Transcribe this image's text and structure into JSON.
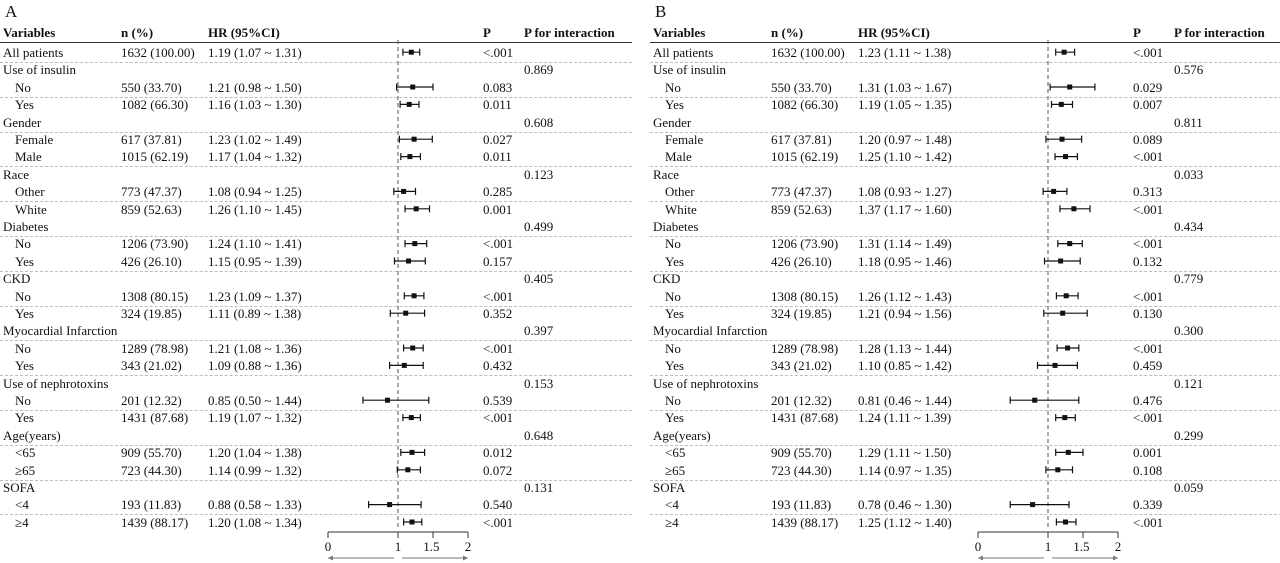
{
  "columns": {
    "variables": "Variables",
    "n": "n (%)",
    "hr": "HR (95%CI)",
    "p": "P",
    "p_int": "P for interaction"
  },
  "panels": [
    {
      "label": "A",
      "axis": {
        "ticks": [
          "0",
          "1",
          "1.5",
          "2"
        ]
      },
      "rows": [
        {
          "label": "All patients",
          "indent": false,
          "n": "1632 (100.00)",
          "hr": "1.19 (1.07 ~ 1.31)",
          "p": "<.001",
          "pint": ""
        },
        {
          "label": "Use of insulin",
          "indent": false,
          "n": "",
          "hr": "",
          "p": "",
          "pint": "0.869"
        },
        {
          "label": "No",
          "indent": true,
          "n": "550 (33.70)",
          "hr": "1.21 (0.98 ~ 1.50)",
          "p": "0.083",
          "pint": ""
        },
        {
          "label": "Yes",
          "indent": true,
          "n": "1082 (66.30)",
          "hr": "1.16 (1.03 ~ 1.30)",
          "p": "0.011",
          "pint": ""
        },
        {
          "label": "Gender",
          "indent": false,
          "n": "",
          "hr": "",
          "p": "",
          "pint": "0.608"
        },
        {
          "label": "Female",
          "indent": true,
          "n": "617 (37.81)",
          "hr": "1.23 (1.02 ~ 1.49)",
          "p": "0.027",
          "pint": ""
        },
        {
          "label": "Male",
          "indent": true,
          "n": "1015 (62.19)",
          "hr": "1.17 (1.04 ~ 1.32)",
          "p": "0.011",
          "pint": ""
        },
        {
          "label": "Race",
          "indent": false,
          "n": "",
          "hr": "",
          "p": "",
          "pint": "0.123"
        },
        {
          "label": "Other",
          "indent": true,
          "n": "773 (47.37)",
          "hr": "1.08 (0.94 ~ 1.25)",
          "p": "0.285",
          "pint": ""
        },
        {
          "label": "White",
          "indent": true,
          "n": "859 (52.63)",
          "hr": "1.26 (1.10 ~ 1.45)",
          "p": "0.001",
          "pint": ""
        },
        {
          "label": "Diabetes",
          "indent": false,
          "n": "",
          "hr": "",
          "p": "",
          "pint": "0.499"
        },
        {
          "label": "No",
          "indent": true,
          "n": "1206 (73.90)",
          "hr": "1.24 (1.10 ~ 1.41)",
          "p": "<.001",
          "pint": ""
        },
        {
          "label": "Yes",
          "indent": true,
          "n": "426 (26.10)",
          "hr": "1.15 (0.95 ~ 1.39)",
          "p": "0.157",
          "pint": ""
        },
        {
          "label": "CKD",
          "indent": false,
          "n": "",
          "hr": "",
          "p": "",
          "pint": "0.405"
        },
        {
          "label": "No",
          "indent": true,
          "n": "1308 (80.15)",
          "hr": "1.23 (1.09 ~ 1.37)",
          "p": "<.001",
          "pint": ""
        },
        {
          "label": "Yes",
          "indent": true,
          "n": "324 (19.85)",
          "hr": "1.11 (0.89 ~ 1.38)",
          "p": "0.352",
          "pint": ""
        },
        {
          "label": "Myocardial Infarction",
          "indent": false,
          "n": "",
          "hr": "",
          "p": "",
          "pint": "0.397"
        },
        {
          "label": "No",
          "indent": true,
          "n": "1289 (78.98)",
          "hr": "1.21 (1.08 ~ 1.36)",
          "p": "<.001",
          "pint": ""
        },
        {
          "label": "Yes",
          "indent": true,
          "n": "343 (21.02)",
          "hr": "1.09 (0.88 ~ 1.36)",
          "p": "0.432",
          "pint": ""
        },
        {
          "label": "Use of nephrotoxins",
          "indent": false,
          "n": "",
          "hr": "",
          "p": "",
          "pint": "0.153"
        },
        {
          "label": "No",
          "indent": true,
          "n": "201 (12.32)",
          "hr": "0.85 (0.50 ~ 1.44)",
          "p": "0.539",
          "pint": ""
        },
        {
          "label": "Yes",
          "indent": true,
          "n": "1431 (87.68)",
          "hr": "1.19 (1.07 ~ 1.32)",
          "p": "<.001",
          "pint": ""
        },
        {
          "label": "Age(years)",
          "indent": false,
          "n": "",
          "hr": "",
          "p": "",
          "pint": "0.648"
        },
        {
          "label": "<65",
          "indent": true,
          "n": "909 (55.70)",
          "hr": "1.20 (1.04 ~ 1.38)",
          "p": "0.012",
          "pint": ""
        },
        {
          "label": "≥65",
          "indent": true,
          "n": "723 (44.30)",
          "hr": "1.14 (0.99 ~ 1.32)",
          "p": "0.072",
          "pint": ""
        },
        {
          "label": "SOFA",
          "indent": false,
          "n": "",
          "hr": "",
          "p": "",
          "pint": "0.131"
        },
        {
          "label": "<4",
          "indent": true,
          "n": "193 (11.83)",
          "hr": "0.88 (0.58 ~ 1.33)",
          "p": "0.540",
          "pint": ""
        },
        {
          "label": "≥4",
          "indent": true,
          "n": "1439 (88.17)",
          "hr": "1.20 (1.08 ~ 1.34)",
          "p": "<.001",
          "pint": ""
        }
      ]
    },
    {
      "label": "B",
      "axis": {
        "ticks": [
          "0",
          "1",
          "1.5",
          "2"
        ]
      },
      "rows": [
        {
          "label": "All patients",
          "indent": false,
          "n": "1632 (100.00)",
          "hr": "1.23 (1.11 ~ 1.38)",
          "p": "<.001",
          "pint": ""
        },
        {
          "label": "Use of insulin",
          "indent": false,
          "n": "",
          "hr": "",
          "p": "",
          "pint": "0.576"
        },
        {
          "label": "No",
          "indent": true,
          "n": "550 (33.70)",
          "hr": "1.31 (1.03 ~ 1.67)",
          "p": "0.029",
          "pint": ""
        },
        {
          "label": "Yes",
          "indent": true,
          "n": "1082 (66.30)",
          "hr": "1.19 (1.05 ~ 1.35)",
          "p": "0.007",
          "pint": ""
        },
        {
          "label": "Gender",
          "indent": false,
          "n": "",
          "hr": "",
          "p": "",
          "pint": "0.811"
        },
        {
          "label": "Female",
          "indent": true,
          "n": "617 (37.81)",
          "hr": "1.20 (0.97 ~ 1.48)",
          "p": "0.089",
          "pint": ""
        },
        {
          "label": "Male",
          "indent": true,
          "n": "1015 (62.19)",
          "hr": "1.25 (1.10 ~ 1.42)",
          "p": "<.001",
          "pint": ""
        },
        {
          "label": "Race",
          "indent": false,
          "n": "",
          "hr": "",
          "p": "",
          "pint": "0.033"
        },
        {
          "label": "Other",
          "indent": true,
          "n": "773 (47.37)",
          "hr": "1.08 (0.93 ~ 1.27)",
          "p": "0.313",
          "pint": ""
        },
        {
          "label": "White",
          "indent": true,
          "n": "859 (52.63)",
          "hr": "1.37 (1.17 ~ 1.60)",
          "p": "<.001",
          "pint": ""
        },
        {
          "label": "Diabetes",
          "indent": false,
          "n": "",
          "hr": "",
          "p": "",
          "pint": "0.434"
        },
        {
          "label": "No",
          "indent": true,
          "n": "1206 (73.90)",
          "hr": "1.31 (1.14 ~ 1.49)",
          "p": "<.001",
          "pint": ""
        },
        {
          "label": "Yes",
          "indent": true,
          "n": "426 (26.10)",
          "hr": "1.18 (0.95 ~ 1.46)",
          "p": "0.132",
          "pint": ""
        },
        {
          "label": "CKD",
          "indent": false,
          "n": "",
          "hr": "",
          "p": "",
          "pint": "0.779"
        },
        {
          "label": "No",
          "indent": true,
          "n": "1308 (80.15)",
          "hr": "1.26 (1.12 ~ 1.43)",
          "p": "<.001",
          "pint": ""
        },
        {
          "label": "Yes",
          "indent": true,
          "n": "324 (19.85)",
          "hr": "1.21 (0.94 ~ 1.56)",
          "p": "0.130",
          "pint": ""
        },
        {
          "label": "Myocardial Infarction",
          "indent": false,
          "n": "",
          "hr": "",
          "p": "",
          "pint": "0.300"
        },
        {
          "label": "No",
          "indent": true,
          "n": "1289 (78.98)",
          "hr": "1.28 (1.13 ~ 1.44)",
          "p": "<.001",
          "pint": ""
        },
        {
          "label": "Yes",
          "indent": true,
          "n": "343 (21.02)",
          "hr": "1.10 (0.85 ~ 1.42)",
          "p": "0.459",
          "pint": ""
        },
        {
          "label": "Use of nephrotoxins",
          "indent": false,
          "n": "",
          "hr": "",
          "p": "",
          "pint": "0.121"
        },
        {
          "label": "No",
          "indent": true,
          "n": "201 (12.32)",
          "hr": "0.81 (0.46 ~ 1.44)",
          "p": "0.476",
          "pint": ""
        },
        {
          "label": "Yes",
          "indent": true,
          "n": "1431 (87.68)",
          "hr": "1.24 (1.11 ~ 1.39)",
          "p": "<.001",
          "pint": ""
        },
        {
          "label": "Age(years)",
          "indent": false,
          "n": "",
          "hr": "",
          "p": "",
          "pint": "0.299"
        },
        {
          "label": "<65",
          "indent": true,
          "n": "909 (55.70)",
          "hr": "1.29 (1.11 ~ 1.50)",
          "p": "0.001",
          "pint": ""
        },
        {
          "label": "≥65",
          "indent": true,
          "n": "723 (44.30)",
          "hr": "1.14 (0.97 ~ 1.35)",
          "p": "0.108",
          "pint": ""
        },
        {
          "label": "SOFA",
          "indent": false,
          "n": "",
          "hr": "",
          "p": "",
          "pint": "0.059"
        },
        {
          "label": "<4",
          "indent": true,
          "n": "193 (11.83)",
          "hr": "0.78 (0.46 ~ 1.30)",
          "p": "0.339",
          "pint": ""
        },
        {
          "label": "≥4",
          "indent": true,
          "n": "1439 (88.17)",
          "hr": "1.25 (1.12 ~ 1.40)",
          "p": "<.001",
          "pint": ""
        }
      ]
    }
  ],
  "chart_data": [
    {
      "type": "forest",
      "panel": "A",
      "xlim": [
        0,
        2
      ],
      "reference_line": 1,
      "xticks": [
        0,
        1,
        1.5,
        2
      ],
      "points": [
        {
          "group": "All patients",
          "hr": 1.19,
          "lo": 1.07,
          "hi": 1.31
        },
        {
          "group": "Use of insulin: No",
          "hr": 1.21,
          "lo": 0.98,
          "hi": 1.5
        },
        {
          "group": "Use of insulin: Yes",
          "hr": 1.16,
          "lo": 1.03,
          "hi": 1.3
        },
        {
          "group": "Gender: Female",
          "hr": 1.23,
          "lo": 1.02,
          "hi": 1.49
        },
        {
          "group": "Gender: Male",
          "hr": 1.17,
          "lo": 1.04,
          "hi": 1.32
        },
        {
          "group": "Race: Other",
          "hr": 1.08,
          "lo": 0.94,
          "hi": 1.25
        },
        {
          "group": "Race: White",
          "hr": 1.26,
          "lo": 1.1,
          "hi": 1.45
        },
        {
          "group": "Diabetes: No",
          "hr": 1.24,
          "lo": 1.1,
          "hi": 1.41
        },
        {
          "group": "Diabetes: Yes",
          "hr": 1.15,
          "lo": 0.95,
          "hi": 1.39
        },
        {
          "group": "CKD: No",
          "hr": 1.23,
          "lo": 1.09,
          "hi": 1.37
        },
        {
          "group": "CKD: Yes",
          "hr": 1.11,
          "lo": 0.89,
          "hi": 1.38
        },
        {
          "group": "Myocardial Infarction: No",
          "hr": 1.21,
          "lo": 1.08,
          "hi": 1.36
        },
        {
          "group": "Myocardial Infarction: Yes",
          "hr": 1.09,
          "lo": 0.88,
          "hi": 1.36
        },
        {
          "group": "Use of nephrotoxins: No",
          "hr": 0.85,
          "lo": 0.5,
          "hi": 1.44
        },
        {
          "group": "Use of nephrotoxins: Yes",
          "hr": 1.19,
          "lo": 1.07,
          "hi": 1.32
        },
        {
          "group": "Age(years): <65",
          "hr": 1.2,
          "lo": 1.04,
          "hi": 1.38
        },
        {
          "group": "Age(years): ≥65",
          "hr": 1.14,
          "lo": 0.99,
          "hi": 1.32
        },
        {
          "group": "SOFA: <4",
          "hr": 0.88,
          "lo": 0.58,
          "hi": 1.33
        },
        {
          "group": "SOFA: ≥4",
          "hr": 1.2,
          "lo": 1.08,
          "hi": 1.34
        }
      ]
    },
    {
      "type": "forest",
      "panel": "B",
      "xlim": [
        0,
        2
      ],
      "reference_line": 1,
      "xticks": [
        0,
        1,
        1.5,
        2
      ],
      "points": [
        {
          "group": "All patients",
          "hr": 1.23,
          "lo": 1.11,
          "hi": 1.38
        },
        {
          "group": "Use of insulin: No",
          "hr": 1.31,
          "lo": 1.03,
          "hi": 1.67
        },
        {
          "group": "Use of insulin: Yes",
          "hr": 1.19,
          "lo": 1.05,
          "hi": 1.35
        },
        {
          "group": "Gender: Female",
          "hr": 1.2,
          "lo": 0.97,
          "hi": 1.48
        },
        {
          "group": "Gender: Male",
          "hr": 1.25,
          "lo": 1.1,
          "hi": 1.42
        },
        {
          "group": "Race: Other",
          "hr": 1.08,
          "lo": 0.93,
          "hi": 1.27
        },
        {
          "group": "Race: White",
          "hr": 1.37,
          "lo": 1.17,
          "hi": 1.6
        },
        {
          "group": "Diabetes: No",
          "hr": 1.31,
          "lo": 1.14,
          "hi": 1.49
        },
        {
          "group": "Diabetes: Yes",
          "hr": 1.18,
          "lo": 0.95,
          "hi": 1.46
        },
        {
          "group": "CKD: No",
          "hr": 1.26,
          "lo": 1.12,
          "hi": 1.43
        },
        {
          "group": "CKD: Yes",
          "hr": 1.21,
          "lo": 0.94,
          "hi": 1.56
        },
        {
          "group": "Myocardial Infarction: No",
          "hr": 1.28,
          "lo": 1.13,
          "hi": 1.44
        },
        {
          "group": "Myocardial Infarction: Yes",
          "hr": 1.1,
          "lo": 0.85,
          "hi": 1.42
        },
        {
          "group": "Use of nephrotoxins: No",
          "hr": 0.81,
          "lo": 0.46,
          "hi": 1.44
        },
        {
          "group": "Use of nephrotoxins: Yes",
          "hr": 1.24,
          "lo": 1.11,
          "hi": 1.39
        },
        {
          "group": "Age(years): <65",
          "hr": 1.29,
          "lo": 1.11,
          "hi": 1.5
        },
        {
          "group": "Age(years): ≥65",
          "hr": 1.14,
          "lo": 0.97,
          "hi": 1.35
        },
        {
          "group": "SOFA: <4",
          "hr": 0.78,
          "lo": 0.46,
          "hi": 1.3
        },
        {
          "group": "SOFA: ≥4",
          "hr": 1.25,
          "lo": 1.12,
          "hi": 1.4
        }
      ]
    }
  ]
}
